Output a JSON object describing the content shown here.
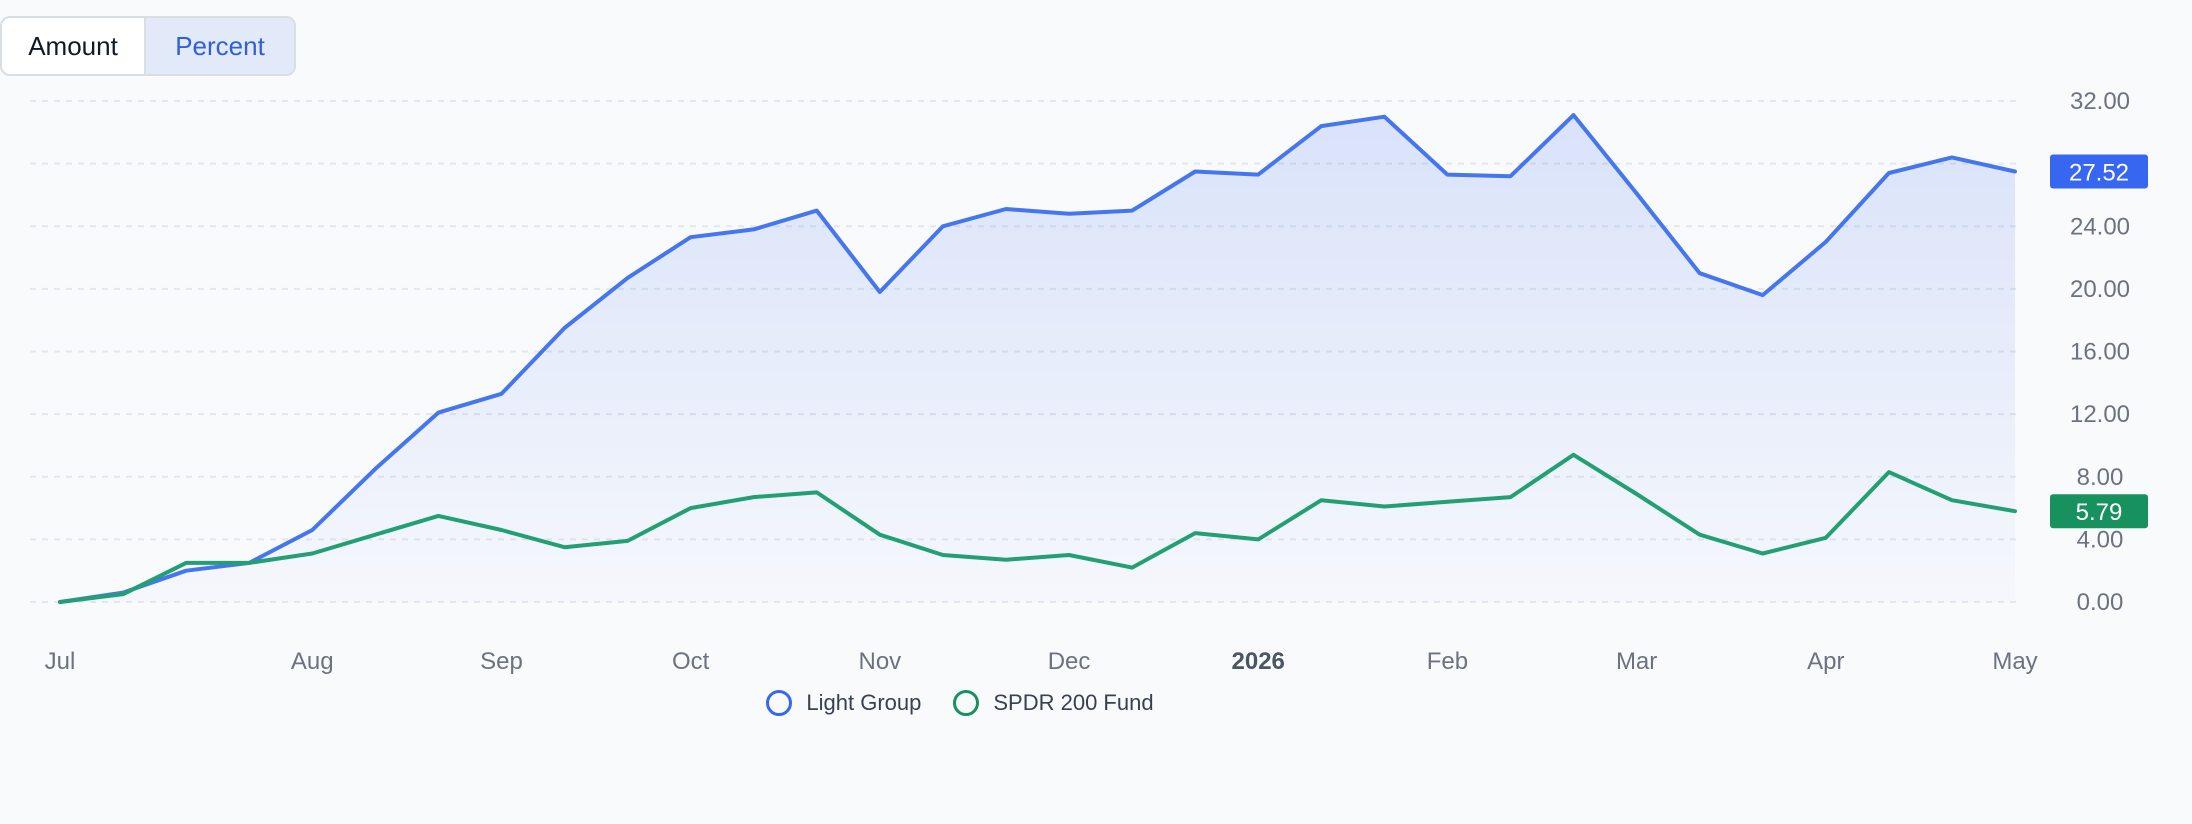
{
  "toggle": {
    "options": [
      {
        "label": "Amount",
        "active": false
      },
      {
        "label": "Percent",
        "active": true
      }
    ]
  },
  "chart_data": {
    "type": "line",
    "y_ticks": [
      "0.00",
      "4.00",
      "8.00",
      "12.00",
      "16.00",
      "20.00",
      "24.00",
      "28.00",
      "32.00"
    ],
    "ylim": [
      0,
      32
    ],
    "x_ticks": [
      {
        "label": "Jul",
        "x": 0,
        "bold": false
      },
      {
        "label": "Aug",
        "x": 4,
        "bold": false
      },
      {
        "label": "Sep",
        "x": 7,
        "bold": false
      },
      {
        "label": "Oct",
        "x": 10,
        "bold": false
      },
      {
        "label": "Nov",
        "x": 13,
        "bold": false
      },
      {
        "label": "Dec",
        "x": 16,
        "bold": false
      },
      {
        "label": "2026",
        "x": 19,
        "bold": true
      },
      {
        "label": "Feb",
        "x": 22,
        "bold": false
      },
      {
        "label": "Mar",
        "x": 25,
        "bold": false
      },
      {
        "label": "Apr",
        "x": 28,
        "bold": false
      },
      {
        "label": "May",
        "x": 31,
        "bold": false
      }
    ],
    "xlim": [
      0,
      31
    ],
    "grid": true,
    "legend_position": "bottom-center",
    "series": [
      {
        "name": "Light Group",
        "color": "#4676ee",
        "label_bg": "#3767f1",
        "area": true,
        "last_label": "27.52",
        "values": [
          0.0,
          0.6,
          2.0,
          2.5,
          4.6,
          8.5,
          12.1,
          13.3,
          17.5,
          20.7,
          23.3,
          23.8,
          25.0,
          19.8,
          24.0,
          25.1,
          24.8,
          25.0,
          27.5,
          27.3,
          30.4,
          31.0,
          27.3,
          27.2,
          31.1,
          26.1,
          21.0,
          19.6,
          23.0,
          27.4,
          28.4,
          27.5
        ]
      },
      {
        "name": "SPDR 200 Fund",
        "color": "#22a073",
        "label_bg": "#17925e",
        "area": false,
        "last_label": "5.79",
        "values": [
          0.0,
          0.5,
          2.5,
          2.5,
          3.1,
          4.3,
          5.5,
          4.6,
          3.5,
          3.9,
          6.0,
          6.7,
          7.0,
          4.3,
          3.0,
          2.7,
          3.0,
          2.2,
          4.4,
          4.0,
          6.5,
          6.1,
          6.4,
          6.7,
          9.4,
          6.9,
          4.3,
          3.1,
          4.1,
          8.3,
          6.5,
          5.8
        ]
      }
    ]
  }
}
